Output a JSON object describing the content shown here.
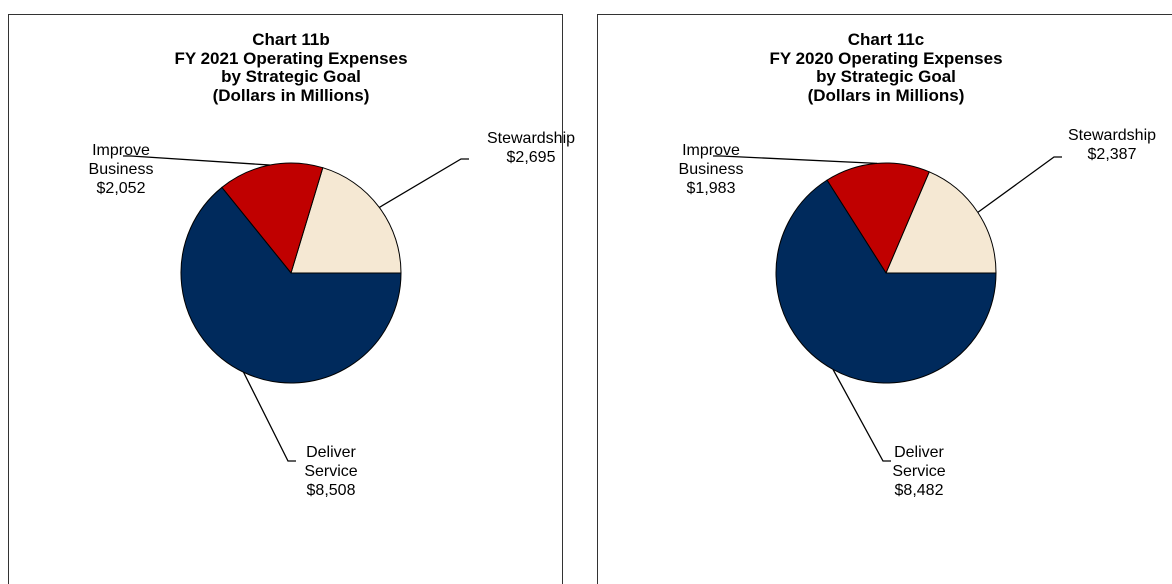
{
  "chart_data": [
    {
      "type": "pie",
      "title": [
        "Chart 11b",
        "FY 2021 Operating Expenses",
        "by Strategic Goal",
        "(Dollars in Millions)"
      ],
      "categories": [
        "Stewardship",
        "Improve Business",
        "Deliver Service"
      ],
      "values": [
        2695,
        2052,
        8508
      ],
      "value_labels": [
        "$2,695",
        "$2,052",
        "$8,508"
      ],
      "colors": [
        "#f5e8d3",
        "#c00000",
        "#002a5c"
      ]
    },
    {
      "type": "pie",
      "title": [
        "Chart 11c",
        "FY 2020 Operating Expenses",
        "by Strategic Goal",
        "(Dollars in Millions)"
      ],
      "categories": [
        "Stewardship",
        "Improve Business",
        "Deliver Service"
      ],
      "values": [
        2387,
        1983,
        8482
      ],
      "value_labels": [
        "$2,387",
        "$1,983",
        "$8,482"
      ],
      "colors": [
        "#f5e8d3",
        "#c00000",
        "#002a5c"
      ]
    }
  ]
}
